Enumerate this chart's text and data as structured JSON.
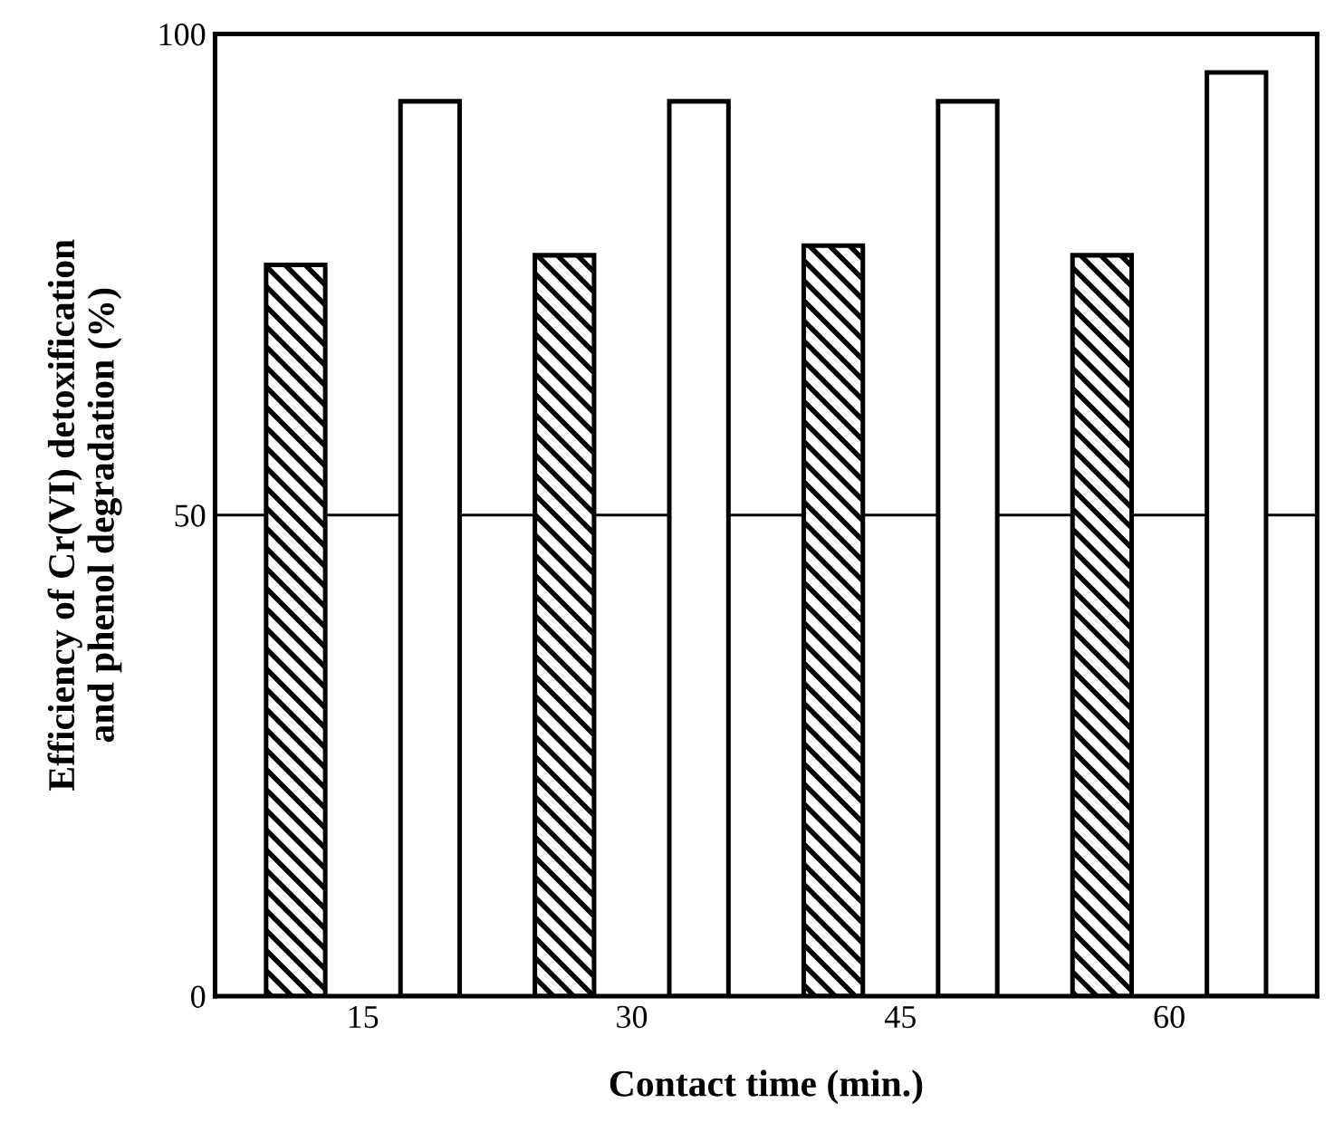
{
  "chart_data": {
    "type": "bar",
    "xlabel": "Contact time (min.)",
    "ylabel": "Efficiency of Cr(VI) detoxification\nand phenol degradation (%)",
    "categories": [
      "15",
      "30",
      "45",
      "60"
    ],
    "series": [
      {
        "color": "#000000",
        "values": [
          76,
          77,
          78,
          77
        ]
      },
      {
        "color": "#ffffff",
        "values": [
          93,
          93,
          93,
          96
        ]
      }
    ],
    "ylim": [
      0,
      100
    ],
    "yticks": [
      0,
      50,
      100
    ],
    "ref_lines": [
      {
        "axis": "y",
        "value": 50,
        "color": "#000000"
      }
    ],
    "grid": false,
    "legend": false
  }
}
